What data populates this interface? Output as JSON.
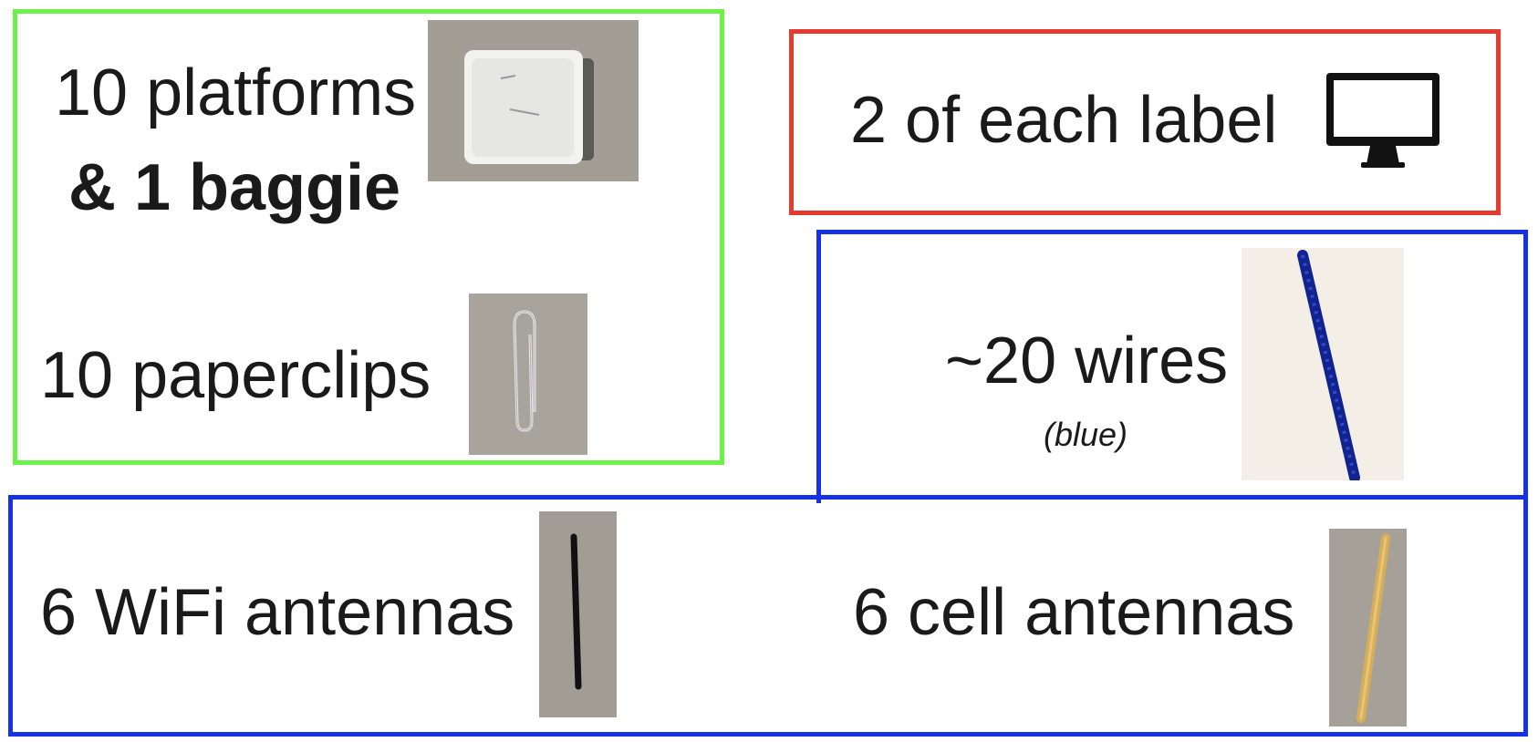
{
  "groups": {
    "green": {
      "line1": "10 platforms",
      "line2": "& 1 baggie",
      "line3": "10 paperclips"
    },
    "red": {
      "text": "2 of each label"
    },
    "blue_top": {
      "text": "~20 wires",
      "note": "(blue)"
    },
    "blue_bottom": {
      "left": "6 WiFi antennas",
      "right": "6 cell antennas"
    }
  },
  "colors": {
    "green_border": "#6cf04a",
    "red_border": "#e63a2e",
    "blue_border": "#1631e6"
  },
  "icons": [
    "monitor-icon"
  ]
}
